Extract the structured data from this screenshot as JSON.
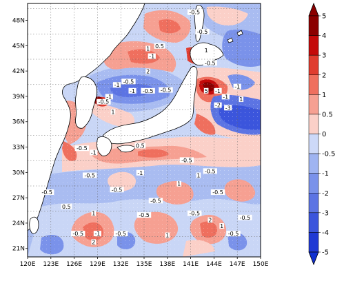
{
  "map": {
    "type": "contour-map",
    "lon_ticks": [
      "120E",
      "123E",
      "126E",
      "129E",
      "132E",
      "135E",
      "138E",
      "141E",
      "144E",
      "147E",
      "150E"
    ],
    "lat_ticks": [
      "21N",
      "24N",
      "27N",
      "30N",
      "33N",
      "36N",
      "39N",
      "42N",
      "45N",
      "48N"
    ],
    "lon_range": [
      120,
      150
    ],
    "lat_range": [
      20,
      50
    ],
    "contour_labels": [
      {
        "text": "-0.5",
        "lon": 142.5,
        "lat": 46.5
      },
      {
        "text": "-0.5",
        "lon": 141.5,
        "lat": 48.8
      },
      {
        "text": "0.5",
        "lon": 137.0,
        "lat": 44.8
      },
      {
        "text": "1",
        "lon": 135.5,
        "lat": 44.5
      },
      {
        "text": "-1",
        "lon": 136.0,
        "lat": 43.6
      },
      {
        "text": "2",
        "lon": 135.5,
        "lat": 41.8
      },
      {
        "text": "-0.5",
        "lon": 133.0,
        "lat": 40.6
      },
      {
        "text": "-1",
        "lon": 131.5,
        "lat": 40.2
      },
      {
        "text": "-1",
        "lon": 133.5,
        "lat": 39.5
      },
      {
        "text": "-0.5",
        "lon": 135.5,
        "lat": 39.5
      },
      {
        "text": "-0.5",
        "lon": 137.8,
        "lat": 39.6
      },
      {
        "text": "-1",
        "lon": 130.5,
        "lat": 38.8
      },
      {
        "text": "-0.5",
        "lon": 129.8,
        "lat": 38.2
      },
      {
        "text": "1",
        "lon": 131.0,
        "lat": 37.0
      },
      {
        "text": "5",
        "lon": 143.0,
        "lat": 39.5
      },
      {
        "text": "-1",
        "lon": 144.5,
        "lat": 39.5
      },
      {
        "text": "-1",
        "lon": 145.5,
        "lat": 38.8
      },
      {
        "text": "-3",
        "lon": 145.8,
        "lat": 37.5
      },
      {
        "text": "-2",
        "lon": 144.5,
        "lat": 37.8
      },
      {
        "text": "1",
        "lon": 147.5,
        "lat": 38.5
      },
      {
        "text": "-1",
        "lon": 147.0,
        "lat": 40.0
      },
      {
        "text": "-0.5",
        "lon": 143.5,
        "lat": 42.8
      },
      {
        "text": "1",
        "lon": 143.0,
        "lat": 44.3
      },
      {
        "text": "-1",
        "lon": 128.5,
        "lat": 32.2
      },
      {
        "text": "-0.5",
        "lon": 127.0,
        "lat": 32.7
      },
      {
        "text": "0.5",
        "lon": 134.5,
        "lat": 33.0
      },
      {
        "text": "-0.5",
        "lon": 140.5,
        "lat": 31.3
      },
      {
        "text": "-0.5",
        "lon": 143.5,
        "lat": 30.0
      },
      {
        "text": "1",
        "lon": 142.0,
        "lat": 29.5
      },
      {
        "text": "-1",
        "lon": 134.5,
        "lat": 29.8
      },
      {
        "text": "-0.5",
        "lon": 128.0,
        "lat": 29.5
      },
      {
        "text": "-0.5",
        "lon": 122.5,
        "lat": 27.5
      },
      {
        "text": "-0.5",
        "lon": 131.5,
        "lat": 27.8
      },
      {
        "text": "1",
        "lon": 139.5,
        "lat": 28.5
      },
      {
        "text": "-0.5",
        "lon": 136.5,
        "lat": 26.5
      },
      {
        "text": "-0.5",
        "lon": 144.5,
        "lat": 27.5
      },
      {
        "text": "0.5",
        "lon": 125.0,
        "lat": 25.8
      },
      {
        "text": "1",
        "lon": 128.5,
        "lat": 25.0
      },
      {
        "text": "-0.5",
        "lon": 135.0,
        "lat": 24.8
      },
      {
        "text": "-0.5",
        "lon": 141.5,
        "lat": 25.0
      },
      {
        "text": "2",
        "lon": 143.5,
        "lat": 24.2
      },
      {
        "text": "-0.5",
        "lon": 148.0,
        "lat": 24.5
      },
      {
        "text": "-0.5",
        "lon": 126.5,
        "lat": 22.6
      },
      {
        "text": "-1",
        "lon": 129.0,
        "lat": 22.6
      },
      {
        "text": "2",
        "lon": 128.5,
        "lat": 21.6
      },
      {
        "text": "-0.5",
        "lon": 132.0,
        "lat": 22.6
      },
      {
        "text": "1",
        "lon": 138.0,
        "lat": 22.4
      },
      {
        "text": "1",
        "lon": 145.0,
        "lat": 23.5
      },
      {
        "text": "-0.5",
        "lon": 146.5,
        "lat": 22.6
      }
    ]
  },
  "colorbar": {
    "labels": [
      "5",
      "4",
      "3",
      "2",
      "1",
      "0.5",
      "0",
      "-0.5",
      "-1",
      "-2",
      "-3",
      "-4",
      "-5"
    ],
    "colors": [
      "#8b0000",
      "#c40a0a",
      "#e03c2f",
      "#ef6f5e",
      "#f6a092",
      "#fbd0c8",
      "#cdd9f8",
      "#9fb4f1",
      "#7a92ea",
      "#5c74e3",
      "#3b55dc",
      "#1f39d4"
    ],
    "over_color": "#8b0000",
    "under_color": "#1030d0"
  }
}
